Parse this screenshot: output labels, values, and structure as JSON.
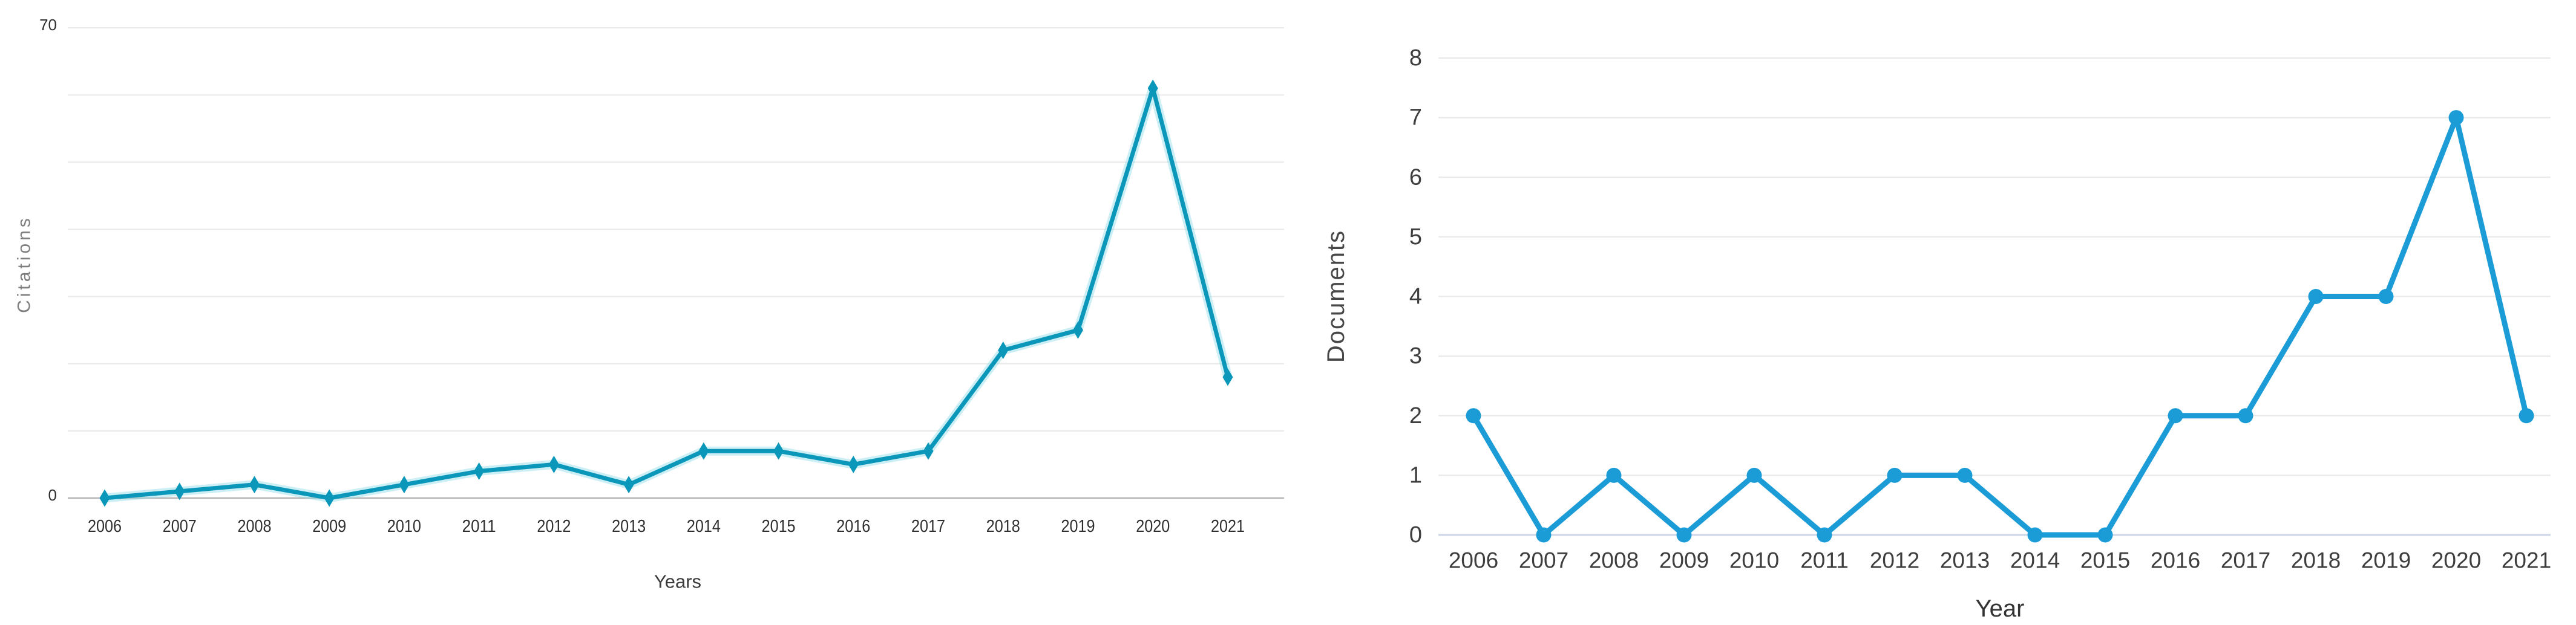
{
  "page": {
    "background": "#ffffff"
  },
  "chart_data": [
    {
      "type": "line",
      "title": "",
      "x": [
        "2006",
        "2007",
        "2008",
        "2009",
        "2010",
        "2011",
        "2012",
        "2013",
        "2014",
        "2015",
        "2016",
        "2017",
        "2018",
        "2019",
        "2020",
        "2021"
      ],
      "series": [
        {
          "name": "Citations",
          "values": [
            0,
            1,
            2,
            0,
            2,
            4,
            5,
            2,
            7,
            7,
            5,
            7,
            22,
            25,
            61,
            18
          ]
        }
      ],
      "xlabel": "Years",
      "ylabel": "Citations",
      "ylim": [
        0,
        70
      ],
      "ytick_step": 10,
      "yticks": [
        {
          "label": "70",
          "value": 70
        },
        {
          "label": "0",
          "value": 0
        }
      ],
      "grid": "horizontal",
      "legend": "none",
      "marker": "diamond",
      "style": {
        "line_color": "#0a97b9",
        "halo_color": "#8fd9e8",
        "grid_color": "#e9e9e9",
        "zero_line_color": "#b5b5b5",
        "tick_color": "#2f2f2f",
        "axis_title_color": "#3a3a3a",
        "ylabel_color": "#7e7e7e"
      }
    },
    {
      "type": "line",
      "title": "",
      "x": [
        "2006",
        "2007",
        "2008",
        "2009",
        "2010",
        "2011",
        "2012",
        "2013",
        "2014",
        "2015",
        "2016",
        "2017",
        "2018",
        "2019",
        "2020",
        "2021"
      ],
      "series": [
        {
          "name": "Documents",
          "values": [
            2,
            0,
            1,
            0,
            1,
            0,
            1,
            1,
            0,
            0,
            2,
            2,
            4,
            4,
            7,
            2
          ]
        }
      ],
      "xlabel": "Year",
      "ylabel": "Documents",
      "ylim": [
        0,
        8
      ],
      "ytick_step": 1,
      "yticks": [
        {
          "label": "0",
          "value": 0
        },
        {
          "label": "1",
          "value": 1
        },
        {
          "label": "2",
          "value": 2
        },
        {
          "label": "3",
          "value": 3
        },
        {
          "label": "4",
          "value": 4
        },
        {
          "label": "5",
          "value": 5
        },
        {
          "label": "6",
          "value": 6
        },
        {
          "label": "7",
          "value": 7
        },
        {
          "label": "8",
          "value": 8
        }
      ],
      "grid": "horizontal",
      "legend": "none",
      "marker": "circle",
      "style": {
        "line_color": "#1b9cd7",
        "halo_color": "#a9ddf2",
        "grid_color": "#e8e8e8",
        "zero_line_color": "#ccd6e6",
        "tick_color": "#3e3e3e",
        "axis_title_color": "#333333",
        "ylabel_color": "#474747"
      }
    }
  ]
}
